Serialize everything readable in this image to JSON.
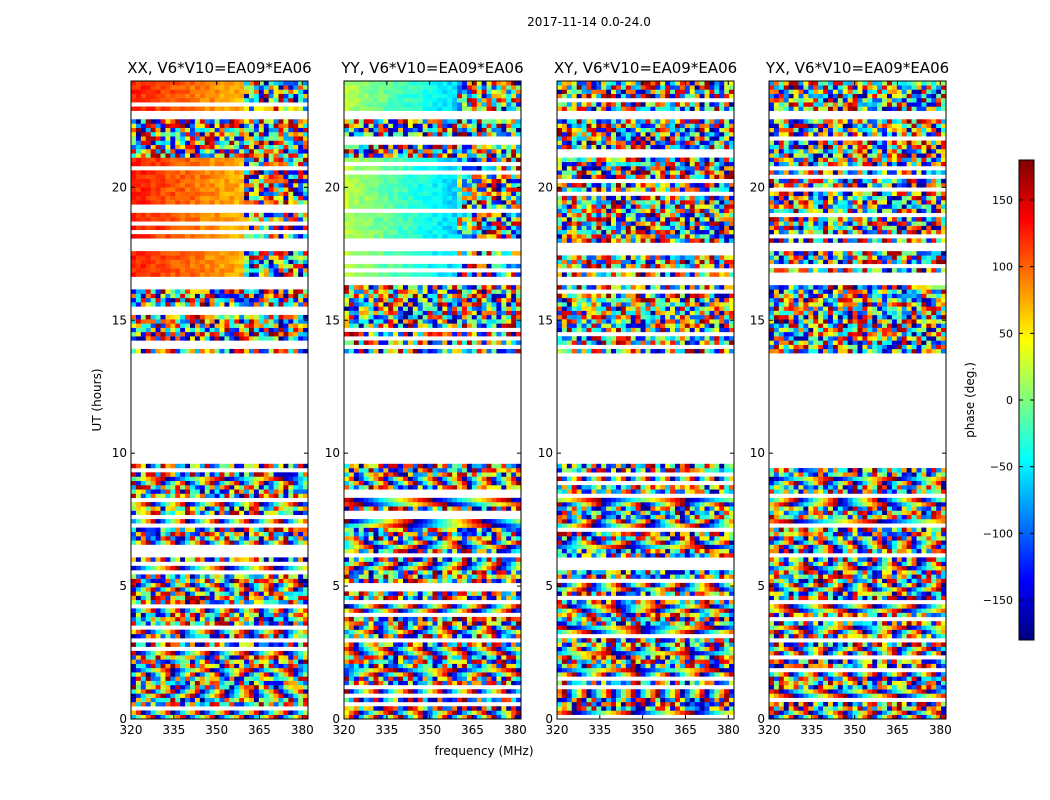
{
  "figure": {
    "suptitle": "2017-11-14 0.0-24.0",
    "xlabel": "frequency (MHz)",
    "ylabel": "UT (hours)"
  },
  "chart_data": {
    "type": "heatmap",
    "suptitle": "2017-11-14 0.0-24.0",
    "xlabel": "frequency (MHz)",
    "ylabel": "UT (hours)",
    "xlim": [
      320,
      382
    ],
    "ylim": [
      0,
      24
    ],
    "x_ticks": [
      320,
      335,
      350,
      365,
      380
    ],
    "y_ticks": [
      0,
      5,
      10,
      15,
      20
    ],
    "panels": [
      {
        "title": "XX, V6*V10=EA09*EA06",
        "pol": "XX"
      },
      {
        "title": "YY, V6*V10=EA09*EA06",
        "pol": "YY"
      },
      {
        "title": "XY, V6*V10=EA09*EA06",
        "pol": "XY"
      },
      {
        "title": "YX, V6*V10=EA09*EA06",
        "pol": "YX"
      }
    ],
    "colorbar": {
      "label": "phase (deg.)",
      "colormap": "jet",
      "range": [
        -180,
        180
      ],
      "ticks": [
        -150,
        -100,
        -50,
        0,
        50,
        100,
        150
      ],
      "colors": [
        "#00007f",
        "#0000ff",
        "#007fff",
        "#00ffff",
        "#7fff7f",
        "#ffff00",
        "#ff7f00",
        "#ff0000",
        "#7f0000"
      ]
    },
    "data_gaps_hours": [
      [
        9.6,
        13.8
      ],
      [
        16.3,
        16.6
      ],
      [
        17.6,
        17.9
      ],
      [
        22.5,
        22.8
      ]
    ],
    "grid": false
  }
}
